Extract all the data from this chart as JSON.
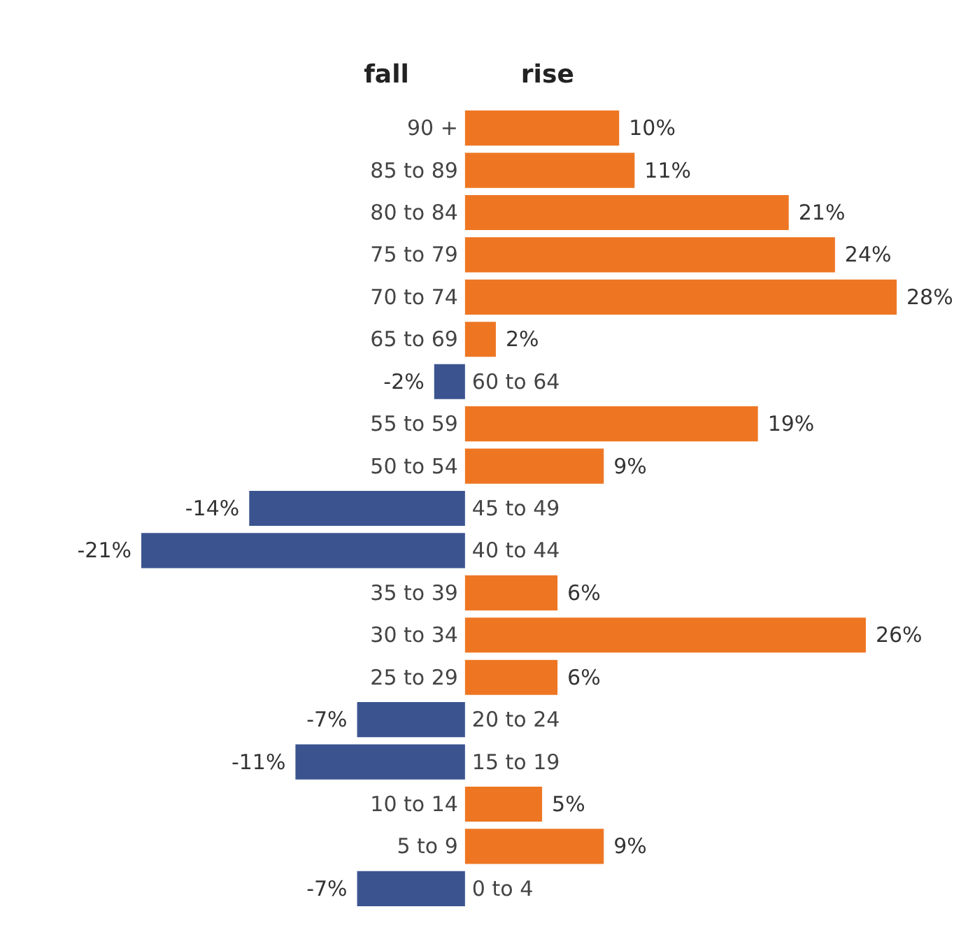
{
  "chart_data": {
    "type": "bar",
    "orientation": "horizontal",
    "annotations": [
      "fall",
      "rise"
    ],
    "categories": [
      "90 +",
      "85 to 89",
      "80 to 84",
      "75 to 79",
      "70 to 74",
      "65 to 69",
      "60 to 64",
      "55 to 59",
      "50 to 54",
      "45 to 49",
      "40 to 44",
      "35 to 39",
      "30 to 34",
      "25 to 29",
      "20 to 24",
      "15 to 19",
      "10 to 14",
      "5 to 9",
      "0 to 4"
    ],
    "values": [
      10,
      11,
      21,
      24,
      28,
      2,
      -2,
      19,
      9,
      -14,
      -21,
      6,
      26,
      6,
      -7,
      -11,
      5,
      9,
      -7
    ],
    "value_labels": [
      "10%",
      "11%",
      "21%",
      "24%",
      "28%",
      "2%",
      "-2%",
      "19%",
      "9%",
      "-14%",
      "-21%",
      "6%",
      "26%",
      "6%",
      "-7%",
      "-11%",
      "5%",
      "9%",
      "-7%"
    ],
    "colors": [
      "#ee7623",
      "#ee7623",
      "#ee7623",
      "#ee7623",
      "#ee7623",
      "#ee7623",
      "#3b5490",
      "#ee7623",
      "#ee7623",
      "#3b5490",
      "#3b5490",
      "#ee7623",
      "#ee7623",
      "#ee7623",
      "#3b5490",
      "#3b5490",
      "#ee7623",
      "#ee7623",
      "#3b5490"
    ]
  }
}
